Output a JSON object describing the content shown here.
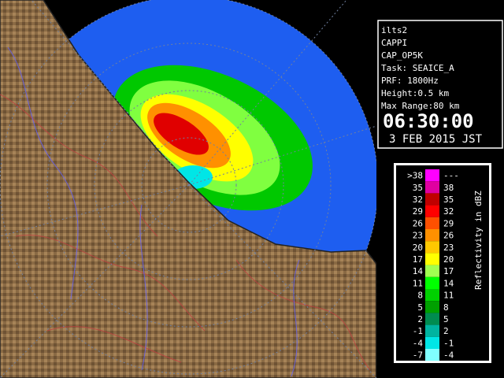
{
  "info": {
    "station": "ilts2",
    "product": "CAPPI",
    "product_code": "CAP_OP5K",
    "task": "Task: SEAICE_A",
    "prf": "PRF: 1800Hz",
    "height": "Height:0.5 km",
    "max_range": "Max Range:80 km",
    "time": "06:30:00",
    "date": "3 FEB 2015 JST"
  },
  "legend": {
    "title": "Reflectivity in dBZ",
    "rows": [
      {
        "low": ">38",
        "high": "---",
        "color": "#ff00ff"
      },
      {
        "low": "35",
        "high": "38",
        "color": "#e000a0"
      },
      {
        "low": "32",
        "high": "35",
        "color": "#c00000"
      },
      {
        "low": "29",
        "high": "32",
        "color": "#ff0000"
      },
      {
        "low": "26",
        "high": "29",
        "color": "#ff5000"
      },
      {
        "low": "23",
        "high": "26",
        "color": "#ff9000"
      },
      {
        "low": "20",
        "high": "23",
        "color": "#ffc800"
      },
      {
        "low": "17",
        "high": "20",
        "color": "#ffff00"
      },
      {
        "low": "14",
        "high": "17",
        "color": "#a0ff50"
      },
      {
        "low": "11",
        "high": "14",
        "color": "#00ff00"
      },
      {
        "low": "8",
        "high": "11",
        "color": "#00d000"
      },
      {
        "low": "5",
        "high": "8",
        "color": "#00a000"
      },
      {
        "low": "2",
        "high": "5",
        "color": "#008c50"
      },
      {
        "low": "-1",
        "high": "2",
        "color": "#00b4a0"
      },
      {
        "low": "-4",
        "high": "-1",
        "color": "#00e6e6"
      },
      {
        "low": "-7",
        "high": "-4",
        "color": "#80ffff"
      }
    ]
  }
}
